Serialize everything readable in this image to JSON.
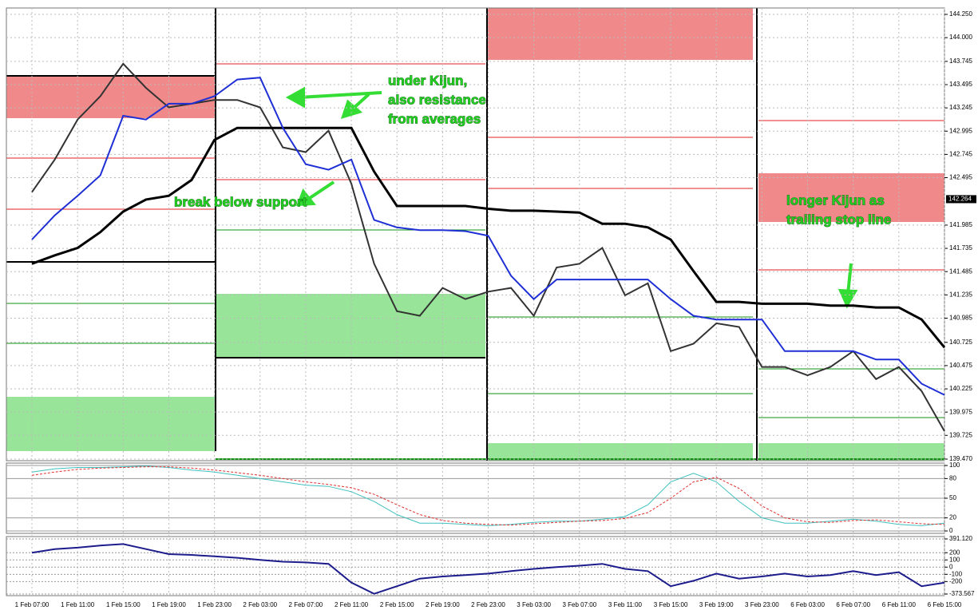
{
  "chart_data": [
    {
      "type": "line",
      "categories": [
        "1 Feb 07:00",
        null,
        "1 Feb 11:00",
        null,
        "1 Feb 15:00",
        null,
        "1 Feb 19:00",
        null,
        "1 Feb 23:00",
        null,
        "2 Feb 03:00",
        null,
        "2 Feb 07:00",
        null,
        "2 Feb 11:00",
        null,
        "2 Feb 15:00",
        null,
        "2 Feb 19:00",
        null,
        "2 Feb 23:00",
        null,
        "3 Feb 03:00",
        null,
        "3 Feb 07:00",
        null,
        "3 Feb 11:00",
        null,
        "3 Feb 15:00",
        null,
        "3 Feb 19:00",
        null,
        "3 Feb 23:00",
        null,
        "6 Feb 03:00",
        null,
        "6 Feb 07:00",
        null,
        "6 Feb 11:00",
        null,
        "6 Feb 15:00"
      ],
      "series": [
        {
          "color": "#333333",
          "values": [
            142.34,
            142.69,
            143.12,
            143.37,
            143.72,
            143.46,
            143.25,
            143.29,
            143.33,
            143.33,
            143.25,
            142.82,
            142.77,
            143.0,
            142.43,
            141.57,
            141.06,
            141.01,
            141.31,
            141.19,
            141.27,
            141.31,
            141.01,
            141.53,
            141.57,
            141.74,
            141.23,
            141.36,
            140.63,
            140.71,
            140.93,
            140.89,
            140.46,
            140.46,
            140.37,
            140.46,
            140.63,
            140.33,
            140.46,
            140.2,
            139.77
          ]
        },
        {
          "color": "#000000",
          "values": [
            141.57,
            141.66,
            141.74,
            141.91,
            142.13,
            142.26,
            142.3,
            142.47,
            142.9,
            143.03,
            143.03,
            143.03,
            143.03,
            143.03,
            143.03,
            142.56,
            142.19,
            142.19,
            142.19,
            142.19,
            142.16,
            142.14,
            142.14,
            142.13,
            142.12,
            142.0,
            142.0,
            141.96,
            141.83,
            141.49,
            141.16,
            141.16,
            141.14,
            141.14,
            141.14,
            141.12,
            141.12,
            141.1,
            141.1,
            140.97,
            140.67
          ]
        },
        {
          "color": "#1f2fd6",
          "values": [
            141.83,
            142.09,
            142.3,
            142.52,
            143.16,
            143.12,
            143.29,
            143.29,
            143.37,
            143.55,
            143.57,
            143.03,
            142.64,
            142.58,
            142.69,
            142.04,
            141.96,
            141.93,
            141.93,
            141.92,
            141.87,
            141.44,
            141.19,
            141.4,
            141.4,
            141.4,
            141.4,
            141.4,
            141.19,
            141.01,
            140.97,
            140.97,
            140.97,
            140.63,
            140.63,
            140.63,
            140.63,
            140.54,
            140.54,
            140.28,
            140.16
          ]
        }
      ],
      "last_price": 142.264,
      "ylim": [
        139.47,
        144.25
      ],
      "yticks": [
        {
          "value": 139.47,
          "label": "139.470"
        },
        {
          "value": 139.725,
          "label": "139.725"
        },
        {
          "value": 139.975,
          "label": "139.975"
        },
        {
          "value": 140.225,
          "label": "140.225"
        },
        {
          "value": 140.475,
          "label": "140.475"
        },
        {
          "value": 140.725,
          "label": "140.725"
        },
        {
          "value": 140.985,
          "label": "140.985"
        },
        {
          "value": 141.235,
          "label": "141.235"
        },
        {
          "value": 141.485,
          "label": "141.485"
        },
        {
          "value": 141.735,
          "label": "141.735"
        },
        {
          "value": 141.985,
          "label": "141.985"
        },
        {
          "value": 142.495,
          "label": "142.495"
        },
        {
          "value": 142.745,
          "label": "142.745"
        },
        {
          "value": 142.995,
          "label": "142.995"
        },
        {
          "value": 143.245,
          "label": "143.245"
        },
        {
          "value": 143.495,
          "label": "143.495"
        },
        {
          "value": 143.745,
          "label": "143.745"
        },
        {
          "value": 144.0,
          "label": "144.000"
        },
        {
          "value": 144.25,
          "label": "144.250"
        }
      ],
      "grid": true,
      "annotations": [
        {
          "lines": [
            "under Kijun,",
            "also resistance",
            "from averages"
          ]
        },
        {
          "lines": [
            "break below support"
          ]
        },
        {
          "lines": [
            "longer Kijun as",
            "trailing stop line"
          ]
        }
      ]
    },
    {
      "type": "line",
      "series": [
        {
          "color": "#40c0c0",
          "values": [
            90,
            95,
            97,
            97,
            98,
            99,
            97,
            93,
            90,
            85,
            80,
            75,
            70,
            68,
            60,
            45,
            25,
            12,
            12,
            10,
            8,
            10,
            13,
            15,
            15,
            18,
            22,
            40,
            75,
            88,
            75,
            45,
            20,
            12,
            12,
            15,
            18,
            15,
            10,
            8,
            12
          ]
        },
        {
          "color": "#e03030",
          "values": [
            85,
            90,
            94,
            96,
            97,
            98,
            98,
            96,
            93,
            89,
            85,
            80,
            75,
            71,
            66,
            56,
            40,
            25,
            16,
            12,
            10,
            9,
            11,
            13,
            15,
            16,
            19,
            28,
            50,
            75,
            82,
            65,
            38,
            20,
            14,
            13,
            16,
            17,
            14,
            11,
            10
          ]
        }
      ],
      "ylim": [
        0,
        100
      ],
      "yticks": [
        0,
        20,
        50,
        80,
        100
      ]
    },
    {
      "type": "line",
      "series": [
        {
          "color": "#1c1c8c",
          "values": [
            200,
            250,
            270,
            300,
            320,
            250,
            180,
            170,
            150,
            130,
            100,
            75,
            65,
            45,
            -215,
            -370,
            -265,
            -160,
            -130,
            -110,
            -90,
            -55,
            -25,
            0,
            20,
            45,
            -25,
            -55,
            -265,
            -190,
            -90,
            -160,
            -130,
            -90,
            -130,
            -110,
            -55,
            -110,
            -70,
            -265,
            -215
          ]
        }
      ],
      "ylim": [
        -373.567,
        391.12
      ],
      "yticks": [
        {
          "value": -373.567,
          "label": "-373.567"
        },
        -200,
        -100,
        0,
        100,
        200,
        {
          "value": 391.12,
          "label": "391.120"
        }
      ]
    }
  ]
}
